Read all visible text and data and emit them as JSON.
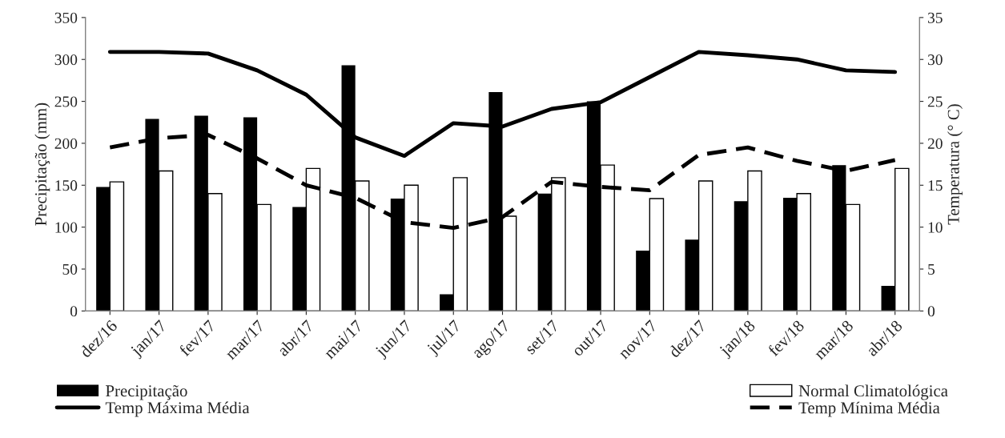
{
  "chart_data": {
    "type": "bar",
    "ylabel": "Precipitação (mm)",
    "y2label": "Temperatura (° C)",
    "categories": [
      "dez/16",
      "jan/17",
      "fev/17",
      "mar/17",
      "abr/17",
      "mai/17",
      "jun/17",
      "jul/17",
      "ago/17",
      "set/17",
      "out/17",
      "nov/17",
      "dez/17",
      "jan/18",
      "fev/18",
      "mar/18",
      "abr/18"
    ],
    "series": [
      {
        "name": "Precipitação",
        "color": "#000000",
        "values": [
          148,
          229,
          233,
          231,
          124,
          293,
          134,
          20,
          261,
          140,
          250,
          72,
          85,
          131,
          135,
          174,
          30
        ]
      },
      {
        "name": "Normal Climatológica",
        "color": "#ffffff",
        "values": [
          154,
          167,
          140,
          127,
          170,
          155,
          150,
          159,
          113,
          159,
          174,
          134,
          155,
          167,
          140,
          127,
          170
        ]
      },
      {
        "name": "Temp Máxima Média",
        "type": "line",
        "axis": "y2",
        "color": "#000000",
        "line_style": "solid",
        "values": [
          30.9,
          30.9,
          30.7,
          28.7,
          25.8,
          20.7,
          18.5,
          22.4,
          22.0,
          24.1,
          24.9,
          27.9,
          30.9,
          30.5,
          30.0,
          28.7,
          28.5
        ]
      },
      {
        "name": "Temp Mínima Média",
        "type": "line",
        "axis": "y2",
        "color": "#000000",
        "line_style": "dashed",
        "values": [
          19.5,
          20.6,
          21.0,
          18.2,
          15.0,
          13.5,
          10.6,
          9.9,
          11.2,
          15.4,
          14.8,
          14.4,
          18.6,
          19.5,
          17.9,
          16.7,
          18.0
        ]
      }
    ],
    "ylim": [
      0,
      350
    ],
    "yticks": [
      0,
      50,
      100,
      150,
      200,
      250,
      300,
      350
    ],
    "y2lim": [
      0,
      35
    ],
    "y2ticks": [
      0,
      5,
      10,
      15,
      20,
      25,
      30,
      35
    ],
    "grid": false,
    "legend": "bottom"
  }
}
